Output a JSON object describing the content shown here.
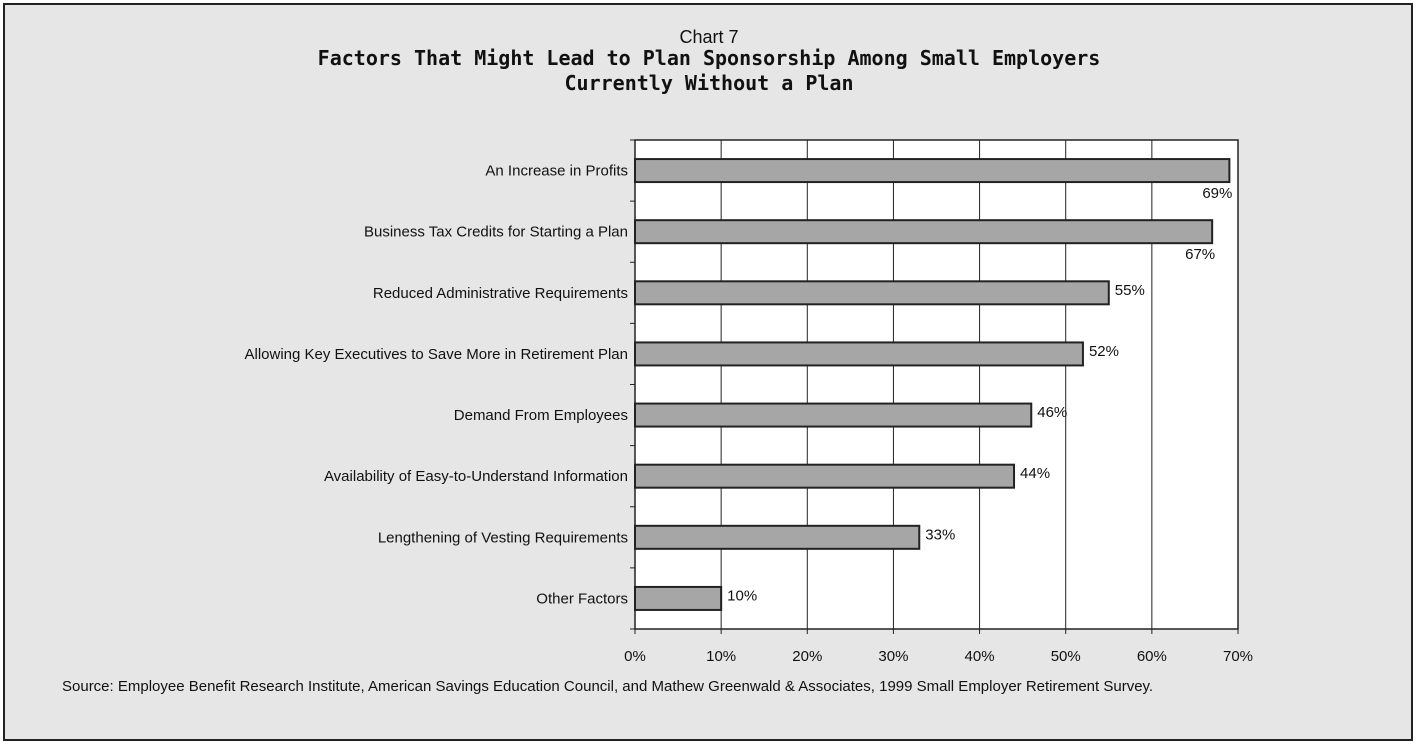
{
  "chart_number": "Chart 7",
  "source": "Source: Employee Benefit Research Institute, American Savings Education Council, and Mathew Greenwald & Associates, 1999 Small Employer Retirement Survey.",
  "colors": {
    "background": "#e6e6e6",
    "bar": "#a6a6a6",
    "bar_stroke": "#222222",
    "grid": "#222222"
  },
  "chart_data": {
    "type": "bar",
    "orientation": "horizontal",
    "title": "Factors That Might Lead to Plan Sponsorship Among Small Employers Currently Without a Plan",
    "title_lines": [
      "Factors That Might Lead to Plan Sponsorship Among Small Employers",
      "Currently Without a Plan"
    ],
    "categories": [
      "An Increase in Profits",
      "Business Tax Credits for Starting a Plan",
      "Reduced Administrative Requirements",
      "Allowing Key Executives to Save More in Retirement Plan",
      "Demand From Employees",
      "Availability of Easy-to-Understand Information",
      "Lengthening of Vesting Requirements",
      "Other Factors"
    ],
    "values": [
      69,
      67,
      55,
      52,
      46,
      44,
      33,
      10
    ],
    "value_labels": [
      "69%",
      "67%",
      "55%",
      "52%",
      "46%",
      "44%",
      "33%",
      "10%"
    ],
    "xlim": [
      0,
      70
    ],
    "x_ticks": [
      0,
      10,
      20,
      30,
      40,
      50,
      60,
      70
    ],
    "x_tick_labels": [
      "0%",
      "10%",
      "20%",
      "30%",
      "40%",
      "50%",
      "60%",
      "70%"
    ],
    "grid": true,
    "xlabel": "",
    "ylabel": ""
  }
}
